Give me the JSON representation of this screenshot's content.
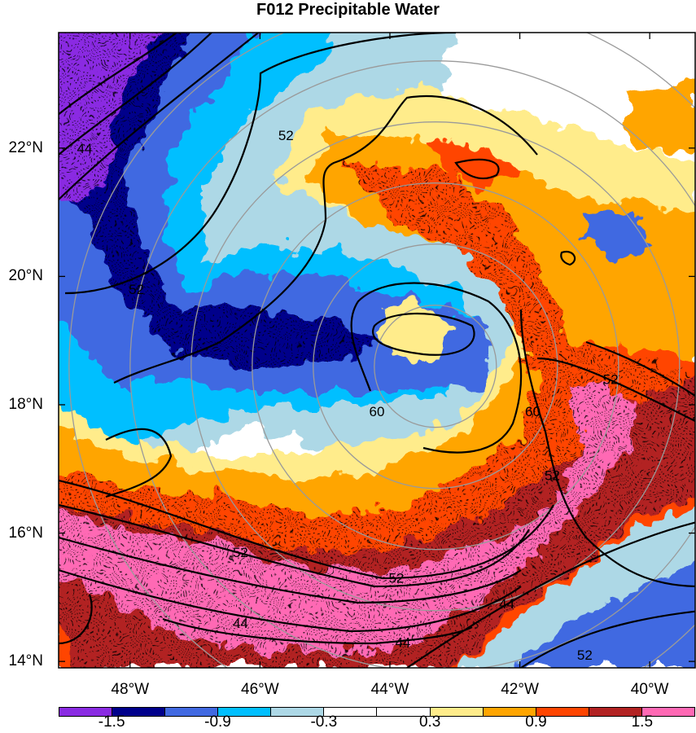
{
  "title": "F012 Precipitable Water",
  "map": {
    "lat_labels": [
      "22°N",
      "20°N",
      "18°N",
      "16°N",
      "14°N"
    ],
    "lat_values": [
      22,
      20,
      18,
      16,
      14
    ],
    "lon_labels": [
      "48°W",
      "46°W",
      "44°W",
      "42°W",
      "40°W"
    ],
    "lon_values": [
      -48,
      -46,
      -44,
      -42,
      -40
    ],
    "lon_range": [
      -49.1,
      -39.3
    ],
    "lat_range": [
      13.9,
      23.8
    ],
    "storm_center": {
      "lon": -43.3,
      "lat": 18.6
    },
    "range_ring_color": "#9a9a9a",
    "contour_labels": [
      {
        "text": "52",
        "lon": -45.6,
        "lat": 22.2
      },
      {
        "text": "44",
        "lon": -48.7,
        "lat": 22.0
      },
      {
        "text": "52",
        "lon": -47.9,
        "lat": 19.8
      },
      {
        "text": "60",
        "lon": -44.2,
        "lat": 17.9
      },
      {
        "text": "60",
        "lon": -41.8,
        "lat": 17.9
      },
      {
        "text": "52",
        "lon": -40.6,
        "lat": 18.4
      },
      {
        "text": "52",
        "lon": -41.5,
        "lat": 16.9
      },
      {
        "text": "52",
        "lon": -46.3,
        "lat": 15.7
      },
      {
        "text": "52",
        "lon": -43.9,
        "lat": 15.3
      },
      {
        "text": "44",
        "lon": -46.3,
        "lat": 14.6
      },
      {
        "text": "44",
        "lon": -43.8,
        "lat": 14.3
      },
      {
        "text": "44",
        "lon": -42.2,
        "lat": 14.9
      },
      {
        "text": "52",
        "lon": -41.0,
        "lat": 14.1
      }
    ]
  },
  "colorbar": {
    "labels": [
      "-1.5",
      "-0.9",
      "-0.3",
      "0.3",
      "0.9",
      "1.5"
    ],
    "colors": [
      "#8a2be2",
      "#00008b",
      "#4169e1",
      "#00bfff",
      "#add8e6",
      "#ffffff",
      "#ffffff",
      "#ffec8b",
      "#ffa500",
      "#ff4500",
      "#b22222",
      "#ff69b4"
    ]
  }
}
